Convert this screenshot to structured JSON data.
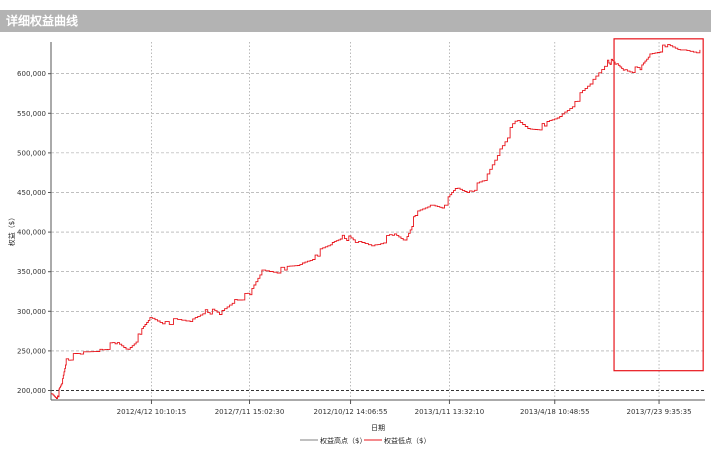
{
  "window": {
    "title": "详细权益曲线"
  },
  "chart_data": {
    "type": "line",
    "title": "",
    "xlabel": "日期",
    "ylabel": "权益（$）",
    "ylim": [
      188000,
      640000
    ],
    "yticks": [
      200000,
      250000,
      300000,
      350000,
      400000,
      450000,
      500000,
      550000,
      600000
    ],
    "ytick_labels": [
      "200,000",
      "250,000",
      "300,000",
      "350,000",
      "400,000",
      "450,000",
      "500,000",
      "550,000",
      "600,000"
    ],
    "xtick_labels": [
      "2012/4/12 10:10:15",
      "2012/7/11 15:02:30",
      "2012/10/12 14:06:55",
      "2013/1/11 13:32:10",
      "2013/4/18 10:48:55",
      "2013/7/23 9:35:35"
    ],
    "grid": true,
    "legend_position": "bottom-center",
    "series": [
      {
        "name": "权益高点（$）",
        "color": "#808080",
        "values": []
      },
      {
        "name": "权益低点（$）",
        "color": "#e8141b",
        "x": [
          "2012/1/11",
          "2012/1/17",
          "2012/1/21",
          "2012/1/25",
          "2012/2/7",
          "2012/2/25",
          "2012/3/10",
          "2012/3/22",
          "2012/4/2",
          "2012/4/11",
          "2012/4/25",
          "2012/5/18",
          "2012/6/1",
          "2012/6/14",
          "2012/6/28",
          "2012/7/12",
          "2012/7/23",
          "2012/8/13",
          "2012/8/27",
          "2012/9/10",
          "2012/9/24",
          "2012/10/5",
          "2012/10/17",
          "2012/11/4",
          "2012/11/20",
          "2012/12/2",
          "2012/12/11",
          "2012/12/25",
          "2013/1/7",
          "2013/1/17",
          "2013/1/30",
          "2013/2/13",
          "2013/2/27",
          "2013/3/13",
          "2013/3/27",
          "2013/4/9",
          "2013/4/23",
          "2013/5/7",
          "2013/5/21",
          "2013/6/6",
          "2013/6/13",
          "2013/6/22",
          "2013/7/6",
          "2013/7/15",
          "2013/7/29",
          "2013/8/12",
          "2013/8/30"
        ],
        "values": [
          196000,
          193000,
          209000,
          240000,
          246000,
          252000,
          259000,
          252000,
          271000,
          292000,
          287000,
          287000,
          302000,
          296000,
          315000,
          321000,
          352000,
          352000,
          359000,
          371000,
          384000,
          396000,
          387000,
          384000,
          396000,
          390000,
          421000,
          434000,
          434000,
          455000,
          452000,
          465000,
          505000,
          540000,
          530000,
          534000,
          546000,
          565000,
          587000,
          617000,
          612000,
          605000,
          605000,
          625000,
          634000,
          630000,
          630000
        ]
      }
    ],
    "highlight_box": {
      "color": "#e8141b",
      "x_range": [
        "2013/6/12",
        "2013/9/2"
      ],
      "y_range": [
        225000,
        644000
      ]
    }
  }
}
